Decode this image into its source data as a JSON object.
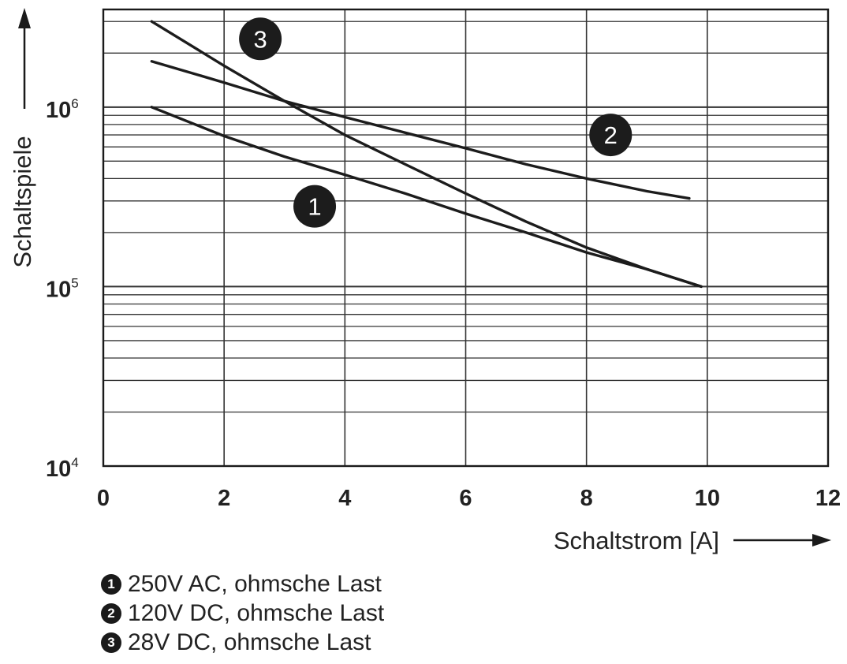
{
  "chart_data": {
    "type": "line",
    "xlabel": "Schaltstrom [A]",
    "ylabel": "Schaltspiele",
    "xlim": [
      0,
      12
    ],
    "ylim": [
      10000,
      3500000
    ],
    "y_scale": "log",
    "grid": true,
    "x_ticks": [
      "0",
      "2",
      "4",
      "6",
      "8",
      "10",
      "12"
    ],
    "y_ticks": [
      {
        "base": "10",
        "exp": "4",
        "value": 10000
      },
      {
        "base": "10",
        "exp": "5",
        "value": 100000
      },
      {
        "base": "10",
        "exp": "6",
        "value": 1000000
      }
    ],
    "series": [
      {
        "id": "1",
        "name": "250V AC, ohmsche Last",
        "x": [
          0.8,
          2.0,
          3.0,
          4.0,
          5.0,
          6.0,
          7.0,
          8.0,
          9.0,
          9.9
        ],
        "y": [
          1000000,
          690000,
          530000,
          420000,
          330000,
          255000,
          200000,
          155000,
          125000,
          100000
        ]
      },
      {
        "id": "2",
        "name": "120V DC, ohmsche Last",
        "x": [
          0.8,
          2.0,
          3.0,
          4.0,
          5.0,
          6.0,
          7.0,
          8.0,
          9.0,
          9.7
        ],
        "y": [
          1800000,
          1370000,
          1080000,
          880000,
          720000,
          590000,
          480000,
          400000,
          340000,
          310000
        ]
      },
      {
        "id": "3",
        "name": "28V DC, ohmsche Last",
        "x": [
          0.8,
          2.0,
          3.0,
          4.0,
          5.0,
          6.0,
          7.0,
          8.0,
          9.0,
          9.9
        ],
        "y": [
          3000000,
          1700000,
          1080000,
          700000,
          480000,
          330000,
          230000,
          165000,
          125000,
          100000
        ]
      }
    ]
  },
  "legend": [
    {
      "badge": "1",
      "label": "250V AC, ohmsche Last"
    },
    {
      "badge": "2",
      "label": "120V DC, ohmsche Last"
    },
    {
      "badge": "3",
      "label": "28V DC, ohmsche Last"
    }
  ]
}
